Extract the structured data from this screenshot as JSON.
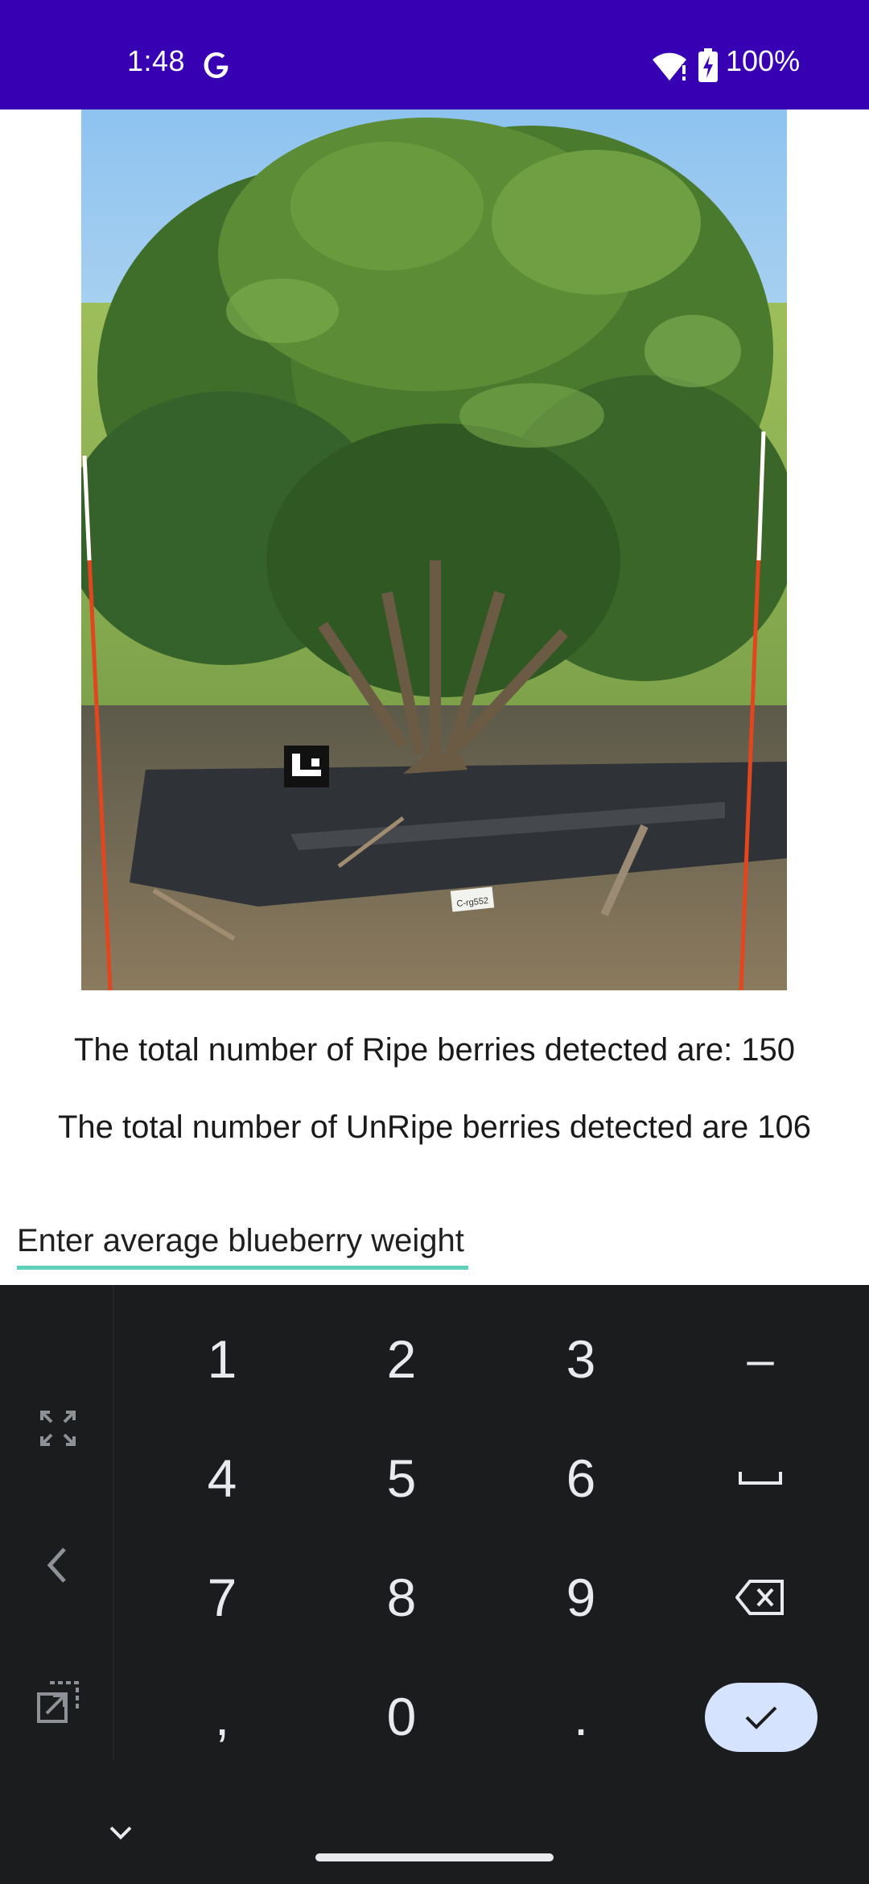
{
  "status_bar": {
    "time": "1:48",
    "google_icon": "google-g-icon",
    "wifi_icon": "wifi-icon",
    "battery_icon": "battery-charging-icon",
    "battery_percent": "100%",
    "background_color": "#3700b3"
  },
  "photo": {
    "description_icon": "blueberry-bush-photo",
    "tag_text": "C-rg552"
  },
  "results": {
    "ripe_text": "The total number of Ripe berries detected are: 150",
    "unripe_text": "The total number of UnRipe berries detected are 106"
  },
  "weight_input": {
    "placeholder": "Enter average blueberry weight",
    "value": "",
    "accent_color": "#5fd1bb"
  },
  "keyboard": {
    "side_icons": [
      "fullscreen-icon",
      "back-arrow-icon",
      "floating-keyboard-icon"
    ],
    "rows": [
      [
        "1",
        "2",
        "3",
        "–"
      ],
      [
        "4",
        "5",
        "6",
        "space"
      ],
      [
        "7",
        "8",
        "9",
        "backspace"
      ],
      [
        ",",
        "0",
        ".",
        "done"
      ]
    ],
    "labels": {
      "k1": "1",
      "k2": "2",
      "k3": "3",
      "minus": "–",
      "k4": "4",
      "k5": "5",
      "k6": "6",
      "k7": "7",
      "k8": "8",
      "k9": "9",
      "comma": ",",
      "k0": "0",
      "period": "."
    },
    "done_color": "#d6e3ff",
    "background_color": "#1b1c1e",
    "collapse_icon": "chevron-down-icon"
  }
}
